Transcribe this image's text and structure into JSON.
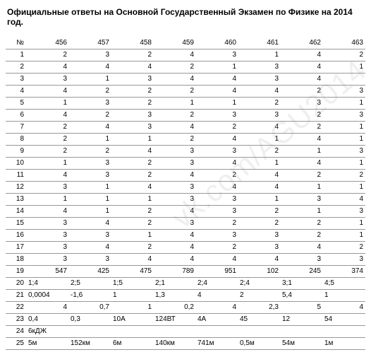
{
  "title": "Официальные ответы на Основной Государственный Экзамен по Физике на 2014 год.",
  "watermark": "vk.com/AGU2014",
  "table": {
    "header": [
      "№",
      "456",
      "457",
      "458",
      "459",
      "460",
      "461",
      "462",
      "463"
    ],
    "rows": [
      [
        "1",
        "2",
        "3",
        "2",
        "4",
        "3",
        "1",
        "4",
        "2"
      ],
      [
        "2",
        "4",
        "4",
        "4",
        "2",
        "1",
        "3",
        "4",
        "1"
      ],
      [
        "3",
        "3",
        "1",
        "3",
        "4",
        "4",
        "3",
        "4",
        ""
      ],
      [
        "4",
        "4",
        "2",
        "2",
        "2",
        "4",
        "4",
        "2",
        "3"
      ],
      [
        "5",
        "1",
        "3",
        "2",
        "1",
        "1",
        "2",
        "3",
        "1"
      ],
      [
        "6",
        "4",
        "2",
        "3",
        "2",
        "3",
        "3",
        "2",
        "3"
      ],
      [
        "7",
        "2",
        "4",
        "3",
        "4",
        "2",
        "4",
        "2",
        "1"
      ],
      [
        "8",
        "2",
        "1",
        "1",
        "2",
        "4",
        "1",
        "4",
        "1"
      ],
      [
        "9",
        "2",
        "2",
        "4",
        "3",
        "3",
        "2",
        "1",
        "3"
      ],
      [
        "10",
        "1",
        "3",
        "2",
        "3",
        "4",
        "1",
        "4",
        "1"
      ],
      [
        "11",
        "4",
        "3",
        "2",
        "4",
        "2",
        "4",
        "2",
        "2"
      ],
      [
        "12",
        "3",
        "1",
        "4",
        "3",
        "4",
        "4",
        "1",
        "1"
      ],
      [
        "13",
        "1",
        "1",
        "1",
        "3",
        "3",
        "1",
        "3",
        "4"
      ],
      [
        "14",
        "4",
        "1",
        "2",
        "4",
        "3",
        "2",
        "1",
        "3"
      ],
      [
        "15",
        "3",
        "4",
        "2",
        "3",
        "2",
        "2",
        "2",
        "1"
      ],
      [
        "16",
        "3",
        "3",
        "1",
        "4",
        "3",
        "3",
        "2",
        "1"
      ],
      [
        "17",
        "3",
        "4",
        "2",
        "4",
        "2",
        "3",
        "4",
        "2"
      ],
      [
        "18",
        "3",
        "3",
        "4",
        "4",
        "4",
        "4",
        "3",
        "3"
      ],
      [
        "19",
        "547",
        "425",
        "475",
        "789",
        "951",
        "102",
        "245",
        "374"
      ],
      [
        "20",
        "1;4",
        "2;5",
        "1;5",
        "2;1",
        "2;4",
        "2;4",
        "3;1",
        "4;5"
      ],
      [
        "21",
        "0,0004",
        "-1,6",
        "1",
        "1,3",
        "4",
        "2",
        "5,4",
        "1"
      ],
      [
        "22",
        "4",
        "0,7",
        "1",
        "0,2",
        "4",
        "2,3",
        "5",
        "4"
      ],
      [
        "23",
        "0,4",
        "0,3",
        "10А",
        "124ВТ",
        "4А",
        "45",
        "12",
        "54"
      ],
      [
        "24",
        "6кДЖ",
        "",
        "",
        "",
        "",
        "",
        "",
        ""
      ],
      [
        "25",
        "5м",
        "152км",
        "6м",
        "140км",
        "741м",
        "0,5м",
        "54м",
        "1м"
      ]
    ],
    "left_align_rows": [
      19,
      20,
      22,
      23,
      24
    ]
  }
}
